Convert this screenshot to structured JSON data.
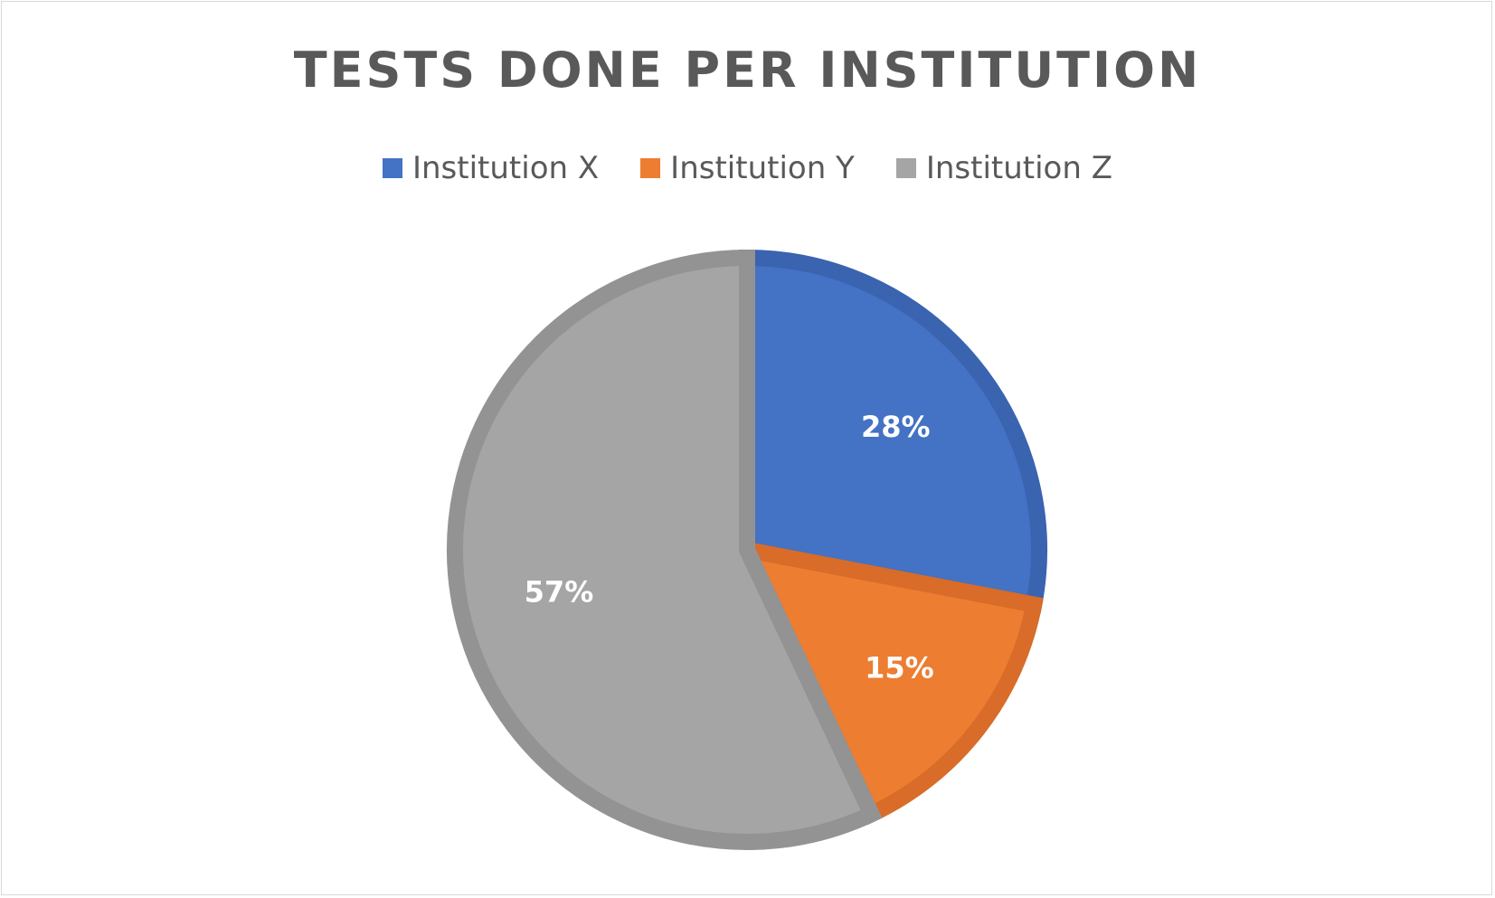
{
  "chart_data": {
    "type": "pie",
    "title": "TESTS DONE PER INSTITUTION",
    "legend_position": "top",
    "categories": [
      "Institution X",
      "Institution Y",
      "Institution Z"
    ],
    "values": [
      28,
      15,
      57
    ],
    "data_labels": [
      "28%",
      "15%",
      "57%"
    ],
    "colors": [
      "#4472c4",
      "#ed7d31",
      "#a5a5a5"
    ],
    "border_colors": [
      "#3a63b0",
      "#d86c28",
      "#939393"
    ]
  }
}
